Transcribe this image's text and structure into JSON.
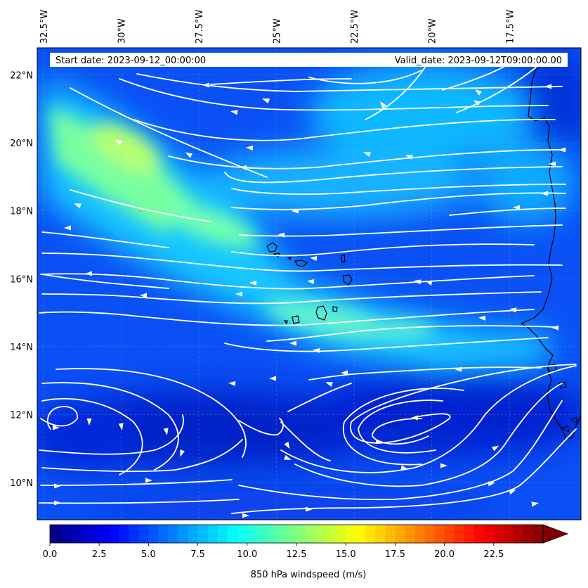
{
  "map": {
    "variable": "850 hPa windspeed",
    "units": "m/s",
    "start_date_text": "Start date: 2023-09-12_00:00:00",
    "valid_date_text": "Valid_date: 2023-09-12T09:00:00.00",
    "lon_range": [
      -32.7,
      -15.2
    ],
    "lat_range": [
      8.9,
      22.8
    ],
    "lon_labels": [
      {
        "lon": -32.5,
        "text": "32.5°W"
      },
      {
        "lon": -30.0,
        "text": "30°W"
      },
      {
        "lon": -27.5,
        "text": "27.5°W"
      },
      {
        "lon": -25.0,
        "text": "25°W"
      },
      {
        "lon": -22.5,
        "text": "22.5°W"
      },
      {
        "lon": -20.0,
        "text": "20°W"
      },
      {
        "lon": -17.5,
        "text": "17.5°W"
      }
    ],
    "lat_labels": [
      {
        "lat": 22,
        "text": "22°N"
      },
      {
        "lat": 20,
        "text": "20°N"
      },
      {
        "lat": 18,
        "text": "18°N"
      },
      {
        "lat": 16,
        "text": "16°N"
      },
      {
        "lat": 14,
        "text": "14°N"
      },
      {
        "lat": 12,
        "text": "12°N"
      },
      {
        "lat": 10,
        "text": "10°N"
      }
    ],
    "gridlines": true,
    "features": [
      "Cabo Verde islands",
      "West African coastline"
    ],
    "streamline_color": "#ffffff"
  },
  "colorbar": {
    "label": "850 hPa windspeed (m/s)",
    "min": 0,
    "max": 25,
    "step": 0.5,
    "extend": "max",
    "colormap": "jet",
    "ticks": [
      {
        "value": 0.0,
        "text": "0.0"
      },
      {
        "value": 2.5,
        "text": "2.5"
      },
      {
        "value": 5.0,
        "text": "5.0"
      },
      {
        "value": 7.5,
        "text": "7.5"
      },
      {
        "value": 10.0,
        "text": "10.0"
      },
      {
        "value": 12.5,
        "text": "12.5"
      },
      {
        "value": 15.0,
        "text": "15.0"
      },
      {
        "value": 17.5,
        "text": "17.5"
      },
      {
        "value": 20.0,
        "text": "20.0"
      },
      {
        "value": 22.5,
        "text": "22.5"
      }
    ]
  }
}
